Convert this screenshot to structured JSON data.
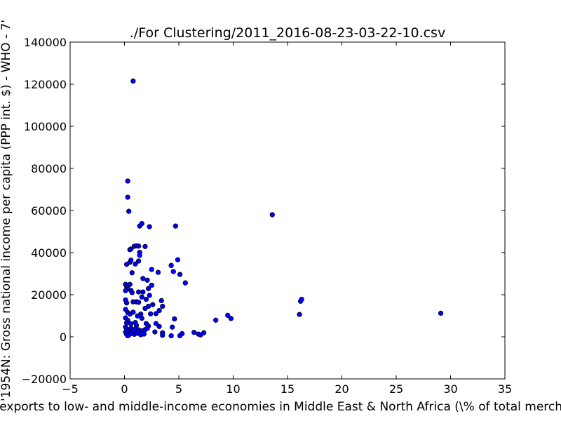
{
  "chart_data": {
    "type": "scatter",
    "title": "./For Clustering/2011_2016-08-23-03-22-10.csv",
    "xlabel": "Merchandise exports to low- and middle-income economies in Middle East & North Africa  (\\% of total merchandise exports)",
    "ylabel": "'1954N: Gross national income per capita (PPP int. $) - WHO - 7'",
    "xlim": [
      -5,
      35
    ],
    "ylim": [
      -20000,
      140000
    ],
    "x_ticks": [
      "−5",
      "0",
      "5",
      "10",
      "15",
      "20",
      "25",
      "30",
      "35"
    ],
    "y_ticks": [
      "−20000",
      "0",
      "20000",
      "40000",
      "60000",
      "80000",
      "100000",
      "120000",
      "140000"
    ],
    "grid": false,
    "point_color": "#0000ff",
    "points": [
      {
        "x": 0.8,
        "y": 121500
      },
      {
        "x": 0.3,
        "y": 74000
      },
      {
        "x": 0.3,
        "y": 66300
      },
      {
        "x": 0.4,
        "y": 59600
      },
      {
        "x": 1.6,
        "y": 53800
      },
      {
        "x": 1.4,
        "y": 52600
      },
      {
        "x": 2.3,
        "y": 52300
      },
      {
        "x": 4.7,
        "y": 52600
      },
      {
        "x": 13.6,
        "y": 58000
      },
      {
        "x": 0.5,
        "y": 41400
      },
      {
        "x": 0.6,
        "y": 41700
      },
      {
        "x": 0.9,
        "y": 43000
      },
      {
        "x": 1.1,
        "y": 43200
      },
      {
        "x": 1.3,
        "y": 43100
      },
      {
        "x": 1.9,
        "y": 42900
      },
      {
        "x": 1.4,
        "y": 40100
      },
      {
        "x": 1.4,
        "y": 38700
      },
      {
        "x": 0.2,
        "y": 34400
      },
      {
        "x": 0.5,
        "y": 35400
      },
      {
        "x": 0.6,
        "y": 36400
      },
      {
        "x": 0.7,
        "y": 30400
      },
      {
        "x": 1.0,
        "y": 34600
      },
      {
        "x": 1.3,
        "y": 36000
      },
      {
        "x": 2.5,
        "y": 32000
      },
      {
        "x": 3.1,
        "y": 30600
      },
      {
        "x": 4.3,
        "y": 33900
      },
      {
        "x": 4.5,
        "y": 31000
      },
      {
        "x": 4.9,
        "y": 36600
      },
      {
        "x": 5.1,
        "y": 29600
      },
      {
        "x": 5.6,
        "y": 25600
      },
      {
        "x": 0.1,
        "y": 24900
      },
      {
        "x": 0.2,
        "y": 23900
      },
      {
        "x": 0.3,
        "y": 22900
      },
      {
        "x": 0.1,
        "y": 21900
      },
      {
        "x": 0.5,
        "y": 24900
      },
      {
        "x": 0.6,
        "y": 22000
      },
      {
        "x": 0.7,
        "y": 21000
      },
      {
        "x": 1.3,
        "y": 21300
      },
      {
        "x": 1.7,
        "y": 27700
      },
      {
        "x": 1.7,
        "y": 21300
      },
      {
        "x": 2.1,
        "y": 26900
      },
      {
        "x": 2.2,
        "y": 22900
      },
      {
        "x": 2.5,
        "y": 24500
      },
      {
        "x": 2.3,
        "y": 19700
      },
      {
        "x": 1.6,
        "y": 18900
      },
      {
        "x": 2.0,
        "y": 17800
      },
      {
        "x": 0.1,
        "y": 17500
      },
      {
        "x": 0.2,
        "y": 16100
      },
      {
        "x": 0.8,
        "y": 16600
      },
      {
        "x": 1.1,
        "y": 16600
      },
      {
        "x": 1.3,
        "y": 16400
      },
      {
        "x": 1.9,
        "y": 13500
      },
      {
        "x": 2.2,
        "y": 14500
      },
      {
        "x": 2.6,
        "y": 15300
      },
      {
        "x": 3.4,
        "y": 17200
      },
      {
        "x": 3.5,
        "y": 14500
      },
      {
        "x": 3.2,
        "y": 12500
      },
      {
        "x": 0.1,
        "y": 13000
      },
      {
        "x": 0.3,
        "y": 11500
      },
      {
        "x": 0.5,
        "y": 10800
      },
      {
        "x": 0.8,
        "y": 11700
      },
      {
        "x": 1.2,
        "y": 9900
      },
      {
        "x": 1.5,
        "y": 10800
      },
      {
        "x": 2.4,
        "y": 10900
      },
      {
        "x": 2.9,
        "y": 11000
      },
      {
        "x": 1.6,
        "y": 8800
      },
      {
        "x": 0.1,
        "y": 9000
      },
      {
        "x": 0.3,
        "y": 7800
      },
      {
        "x": 0.2,
        "y": 6600
      },
      {
        "x": 0.6,
        "y": 6200
      },
      {
        "x": 1.0,
        "y": 6800
      },
      {
        "x": 1.1,
        "y": 5400
      },
      {
        "x": 2.0,
        "y": 6300
      },
      {
        "x": 2.2,
        "y": 5100
      },
      {
        "x": 2.9,
        "y": 6300
      },
      {
        "x": 3.2,
        "y": 4900
      },
      {
        "x": 4.6,
        "y": 8500
      },
      {
        "x": 0.1,
        "y": 4600
      },
      {
        "x": 0.2,
        "y": 3700
      },
      {
        "x": 0.4,
        "y": 2900
      },
      {
        "x": 0.6,
        "y": 4100
      },
      {
        "x": 0.8,
        "y": 3000
      },
      {
        "x": 1.0,
        "y": 3700
      },
      {
        "x": 1.3,
        "y": 3300
      },
      {
        "x": 1.6,
        "y": 2800
      },
      {
        "x": 1.9,
        "y": 3400
      },
      {
        "x": 2.1,
        "y": 4000
      },
      {
        "x": 2.8,
        "y": 2300
      },
      {
        "x": 4.4,
        "y": 4600
      },
      {
        "x": 0.1,
        "y": 2200
      },
      {
        "x": 0.2,
        "y": 1200
      },
      {
        "x": 0.4,
        "y": 800
      },
      {
        "x": 0.6,
        "y": 1600
      },
      {
        "x": 0.9,
        "y": 1200
      },
      {
        "x": 1.2,
        "y": 1700
      },
      {
        "x": 1.5,
        "y": 1000
      },
      {
        "x": 1.8,
        "y": 1300
      },
      {
        "x": 0.3,
        "y": 500
      },
      {
        "x": 3.5,
        "y": 1900
      },
      {
        "x": 3.5,
        "y": 700
      },
      {
        "x": 4.3,
        "y": 500
      },
      {
        "x": 5.1,
        "y": 500
      },
      {
        "x": 5.3,
        "y": 1500
      },
      {
        "x": 6.4,
        "y": 2100
      },
      {
        "x": 6.8,
        "y": 1300
      },
      {
        "x": 7.0,
        "y": 900
      },
      {
        "x": 7.3,
        "y": 1900
      },
      {
        "x": 8.4,
        "y": 7900
      },
      {
        "x": 9.5,
        "y": 10200
      },
      {
        "x": 9.8,
        "y": 8700
      },
      {
        "x": 16.1,
        "y": 10600
      },
      {
        "x": 16.2,
        "y": 16900
      },
      {
        "x": 16.3,
        "y": 17800
      },
      {
        "x": 29.1,
        "y": 11200
      }
    ]
  }
}
